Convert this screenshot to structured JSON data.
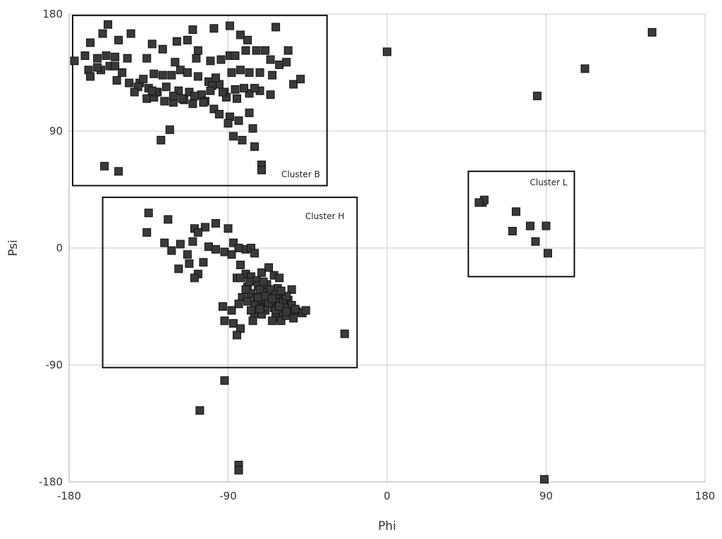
{
  "chart_data": {
    "type": "scatter",
    "title": "",
    "xlabel": "Phi",
    "ylabel": "Psi",
    "xlim": [
      -180,
      180
    ],
    "ylim": [
      -180,
      180
    ],
    "xticks": [
      -180,
      -90,
      0,
      90,
      180
    ],
    "yticks": [
      -180,
      -90,
      0,
      90,
      180
    ],
    "grid": true,
    "colors": {
      "marker_fill": "#3a3a3a",
      "marker_edge": "#111111",
      "grid": "#c8c8c8",
      "axis": "#aaaaaa",
      "box": "#111111"
    },
    "clusters": [
      {
        "label": "Cluster B",
        "x_range": [
          -178,
          -34
        ],
        "y_range": [
          48,
          179
        ]
      },
      {
        "label": "Cluster H",
        "x_range": [
          -161,
          -17
        ],
        "y_range": [
          -92,
          39
        ]
      },
      {
        "label": "Cluster L",
        "x_range": [
          46,
          106
        ],
        "y_range": [
          -22,
          59
        ]
      }
    ],
    "points": [
      [
        -158,
        172
      ],
      [
        -145,
        165
      ],
      [
        -110,
        168
      ],
      [
        -89,
        171
      ],
      [
        -63,
        170
      ],
      [
        -98,
        169
      ],
      [
        -83,
        164
      ],
      [
        -113,
        160
      ],
      [
        -79,
        160
      ],
      [
        -119,
        159
      ],
      [
        -152,
        160
      ],
      [
        -133,
        157
      ],
      [
        -127,
        153
      ],
      [
        -107,
        152
      ],
      [
        -161,
        165
      ],
      [
        -168,
        158
      ],
      [
        -171,
        148
      ],
      [
        -164,
        146
      ],
      [
        -159,
        148
      ],
      [
        -154,
        147
      ],
      [
        -147,
        146
      ],
      [
        -136,
        146
      ],
      [
        -120,
        143
      ],
      [
        -108,
        146
      ],
      [
        -100,
        144
      ],
      [
        -94,
        145
      ],
      [
        -89,
        148
      ],
      [
        -86,
        148
      ],
      [
        -80,
        152
      ],
      [
        -74,
        152
      ],
      [
        -69,
        152
      ],
      [
        -56,
        152
      ],
      [
        -66,
        145
      ],
      [
        -61,
        141
      ],
      [
        -57,
        143
      ],
      [
        -169,
        137
      ],
      [
        -162,
        137
      ],
      [
        -157,
        140
      ],
      [
        -154,
        140
      ],
      [
        -150,
        135
      ],
      [
        -140,
        127
      ],
      [
        -138,
        130
      ],
      [
        -132,
        134
      ],
      [
        -127,
        133
      ],
      [
        -122,
        133
      ],
      [
        -117,
        137
      ],
      [
        -113,
        135
      ],
      [
        -107,
        132
      ],
      [
        -101,
        128
      ],
      [
        -95,
        126
      ],
      [
        -88,
        135
      ],
      [
        -83,
        137
      ],
      [
        -78,
        135
      ],
      [
        -72,
        135
      ],
      [
        -65,
        133
      ],
      [
        -177,
        144
      ],
      [
        -168,
        132
      ],
      [
        -164,
        139
      ],
      [
        -153,
        129
      ],
      [
        -146,
        127
      ],
      [
        -141,
        124
      ],
      [
        -135,
        123
      ],
      [
        -130,
        120
      ],
      [
        -125,
        124
      ],
      [
        -118,
        121
      ],
      [
        -112,
        120
      ],
      [
        -105,
        118
      ],
      [
        -99,
        125
      ],
      [
        -92,
        120
      ],
      [
        -86,
        122
      ],
      [
        -78,
        119
      ],
      [
        -72,
        121
      ],
      [
        -66,
        118
      ],
      [
        -53,
        126
      ],
      [
        -49,
        130
      ],
      [
        -143,
        120
      ],
      [
        -136,
        115
      ],
      [
        -132,
        116
      ],
      [
        -121,
        112
      ],
      [
        -115,
        114
      ],
      [
        -110,
        111
      ],
      [
        -103,
        113
      ],
      [
        -98,
        107
      ],
      [
        -91,
        116
      ],
      [
        -85,
        115
      ],
      [
        -81,
        123
      ],
      [
        -75,
        123
      ],
      [
        -131,
        120
      ],
      [
        -121,
        117
      ],
      [
        -116,
        115
      ],
      [
        -109,
        117
      ],
      [
        -89,
        101
      ],
      [
        -84,
        98
      ],
      [
        -78,
        104
      ],
      [
        -95,
        103
      ],
      [
        -90,
        96
      ],
      [
        -76,
        92
      ],
      [
        -82,
        83
      ],
      [
        -75,
        78
      ],
      [
        -87,
        86
      ],
      [
        -123,
        91
      ],
      [
        -128,
        83
      ],
      [
        -71,
        64
      ],
      [
        -71,
        60
      ],
      [
        -160,
        63
      ],
      [
        -152,
        59
      ],
      [
        -133,
        121
      ],
      [
        -126,
        113
      ],
      [
        -104,
        112
      ],
      [
        -100,
        121
      ],
      [
        -93,
        120
      ],
      [
        -97,
        131
      ],
      [
        0,
        151
      ],
      [
        150,
        166
      ],
      [
        112,
        138
      ],
      [
        85,
        117
      ],
      [
        -135,
        27
      ],
      [
        -124,
        22
      ],
      [
        -97,
        19
      ],
      [
        -90,
        15
      ],
      [
        -103,
        16
      ],
      [
        -109,
        15
      ],
      [
        -107,
        12
      ],
      [
        -110,
        5
      ],
      [
        -117,
        3
      ],
      [
        -101,
        1
      ],
      [
        -97,
        -1
      ],
      [
        -92,
        -3
      ],
      [
        -87,
        4
      ],
      [
        -80,
        -1
      ],
      [
        -84,
        0
      ],
      [
        -88,
        -5
      ],
      [
        -122,
        -2
      ],
      [
        -126,
        4
      ],
      [
        -136,
        12
      ],
      [
        -112,
        -12
      ],
      [
        -118,
        -16
      ],
      [
        -113,
        -5
      ],
      [
        -107,
        -20
      ],
      [
        -109,
        -23
      ],
      [
        -104,
        -11
      ],
      [
        -77,
        0
      ],
      [
        -75,
        -4
      ],
      [
        -83,
        -13
      ],
      [
        -80,
        -20
      ],
      [
        -77,
        -22
      ],
      [
        -74,
        -25
      ],
      [
        -71,
        -19
      ],
      [
        -67,
        -15
      ],
      [
        -64,
        -21
      ],
      [
        -79,
        -30
      ],
      [
        -77,
        -35
      ],
      [
        -74,
        -38
      ],
      [
        -70,
        -33
      ],
      [
        -68,
        -28
      ],
      [
        -66,
        -36
      ],
      [
        -62,
        -31
      ],
      [
        -60,
        -38
      ],
      [
        -56,
        -40
      ],
      [
        -73,
        -42
      ],
      [
        -69,
        -44
      ],
      [
        -64,
        -46
      ],
      [
        -58,
        -45
      ],
      [
        -55,
        -48
      ],
      [
        -51,
        -49
      ],
      [
        -59,
        -52
      ],
      [
        -63,
        -54
      ],
      [
        -65,
        -56
      ],
      [
        -69,
        -48
      ],
      [
        -72,
        -46
      ],
      [
        -75,
        -50
      ],
      [
        -71,
        -51
      ],
      [
        -60,
        -56
      ],
      [
        -57,
        -52
      ],
      [
        -53,
        -54
      ],
      [
        -48,
        -50
      ],
      [
        -46,
        -48
      ],
      [
        -54,
        -32
      ],
      [
        -61,
        -23
      ],
      [
        -62,
        -40
      ],
      [
        -68,
        -41
      ],
      [
        -75,
        -44
      ],
      [
        -80,
        -32
      ],
      [
        -82,
        -38
      ],
      [
        -79,
        -41
      ],
      [
        -84,
        -43
      ],
      [
        -73,
        -29
      ],
      [
        -70,
        -26
      ],
      [
        -66,
        -32
      ],
      [
        -63,
        -36
      ],
      [
        -59,
        -42
      ],
      [
        -57,
        -37
      ],
      [
        -54,
        -44
      ],
      [
        -85,
        -23
      ],
      [
        -83,
        -23
      ],
      [
        -78,
        -26
      ],
      [
        -72,
        -32
      ],
      [
        -67,
        -42
      ],
      [
        -63,
        -48
      ],
      [
        -60,
        -33
      ],
      [
        -58,
        -46
      ],
      [
        -76,
        -56
      ],
      [
        -87,
        -58
      ],
      [
        -83,
        -62
      ],
      [
        -85,
        -67
      ],
      [
        -92,
        -56
      ],
      [
        -93,
        -45
      ],
      [
        -24,
        -66
      ],
      [
        -77,
        -48
      ],
      [
        -73,
        -38
      ],
      [
        -69,
        -37
      ],
      [
        -65,
        -39
      ],
      [
        -61,
        -45
      ],
      [
        -57,
        -49
      ],
      [
        -52,
        -47
      ],
      [
        -72,
        -47
      ],
      [
        -88,
        -48
      ],
      [
        -92,
        -102
      ],
      [
        -106,
        -125
      ],
      [
        -84,
        -167
      ],
      [
        -84,
        -171
      ],
      [
        89,
        -178
      ],
      [
        54,
        35
      ],
      [
        55,
        37
      ],
      [
        52,
        35
      ],
      [
        73,
        28
      ],
      [
        71,
        13
      ],
      [
        81,
        17
      ],
      [
        90,
        17
      ],
      [
        84,
        5
      ],
      [
        91,
        -4
      ]
    ]
  }
}
